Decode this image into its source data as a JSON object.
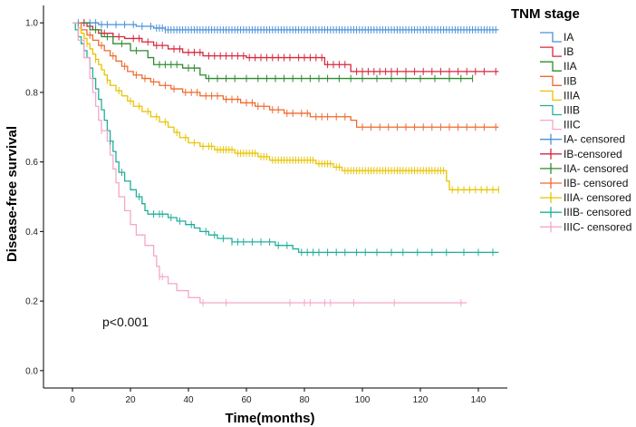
{
  "chart_data": {
    "type": "line",
    "subtype": "kaplan-meier",
    "title": "",
    "xlabel": "Time(months)",
    "ylabel": "Disease-free survival",
    "xlim": [
      -10,
      150
    ],
    "ylim": [
      -0.05,
      1.05
    ],
    "x_ticks": [
      0,
      20,
      40,
      60,
      80,
      100,
      120,
      140
    ],
    "y_ticks": [
      0.0,
      0.2,
      0.4,
      0.6,
      0.8,
      1.0
    ],
    "y_tick_labels": [
      "0.0",
      "0.2",
      "0.4",
      "0.6",
      "0.8",
      "1.0"
    ],
    "grid": false,
    "legend_title": "TNM stage",
    "legend_position": "right",
    "annotation": "p<0.001",
    "series": [
      {
        "name": "IA",
        "censored_label": "IA- censored",
        "color": "#4A90D9",
        "steps": [
          [
            0,
            1.0
          ],
          [
            9,
            0.995
          ],
          [
            22,
            0.99
          ],
          [
            28,
            0.985
          ],
          [
            32,
            0.98
          ],
          [
            147,
            0.98
          ]
        ],
        "censor_times": [
          2,
          4,
          6,
          8,
          10,
          12,
          15,
          18,
          21,
          24,
          27,
          29,
          30,
          31,
          32,
          33,
          34,
          35,
          36,
          37,
          38,
          39,
          40,
          41,
          42,
          43,
          44,
          45,
          46,
          47,
          48,
          49,
          50,
          51,
          52,
          53,
          54,
          55,
          56,
          57,
          58,
          59,
          60,
          61,
          62,
          63,
          64,
          65,
          66,
          67,
          68,
          69,
          70,
          71,
          72,
          73,
          74,
          75,
          76,
          77,
          78,
          79,
          80,
          81,
          82,
          83,
          84,
          85,
          86,
          87,
          88,
          89,
          90,
          91,
          92,
          93,
          94,
          95,
          96,
          97,
          98,
          99,
          100,
          101,
          102,
          103,
          104,
          105,
          106,
          107,
          108,
          109,
          110,
          111,
          112,
          113,
          114,
          115,
          116,
          117,
          118,
          119,
          120,
          121,
          122,
          123,
          124,
          125,
          126,
          127,
          128,
          129,
          130,
          131,
          132,
          133,
          134,
          135,
          136,
          137,
          138,
          139,
          140,
          141,
          142,
          143,
          144,
          145,
          146
        ]
      },
      {
        "name": "IB",
        "censored_label": "IB-censored",
        "color": "#D7263D",
        "steps": [
          [
            0,
            1.0
          ],
          [
            5,
            0.99
          ],
          [
            7,
            0.98
          ],
          [
            9,
            0.97
          ],
          [
            14,
            0.96
          ],
          [
            18,
            0.955
          ],
          [
            24,
            0.945
          ],
          [
            28,
            0.935
          ],
          [
            33,
            0.925
          ],
          [
            38,
            0.915
          ],
          [
            45,
            0.905
          ],
          [
            60,
            0.9
          ],
          [
            87,
            0.88
          ],
          [
            96,
            0.86
          ],
          [
            147,
            0.86
          ]
        ],
        "censor_times": [
          4,
          11,
          16,
          21,
          23,
          26,
          29,
          31,
          35,
          37,
          40,
          42,
          44,
          47,
          49,
          51,
          53,
          55,
          57,
          59,
          61,
          63,
          65,
          67,
          69,
          71,
          73,
          75,
          78,
          80,
          82,
          84,
          86,
          88,
          90,
          92,
          94,
          98,
          100,
          102,
          104,
          106,
          108,
          110,
          112,
          115,
          118,
          121,
          124,
          127,
          130,
          133,
          136,
          139,
          142,
          146
        ]
      },
      {
        "name": "IIA",
        "censored_label": "IIA- censored",
        "color": "#2E8B2E",
        "steps": [
          [
            0,
            1.0
          ],
          [
            6,
            0.98
          ],
          [
            10,
            0.96
          ],
          [
            14,
            0.94
          ],
          [
            20,
            0.92
          ],
          [
            26,
            0.9
          ],
          [
            28,
            0.88
          ],
          [
            38,
            0.87
          ],
          [
            44,
            0.85
          ],
          [
            46,
            0.84
          ],
          [
            138,
            0.84
          ]
        ],
        "censor_times": [
          8,
          12,
          17,
          22,
          30,
          32,
          34,
          36,
          40,
          42,
          47,
          50,
          53,
          56,
          60,
          64,
          67,
          70,
          73,
          76,
          79,
          82,
          85,
          88,
          92,
          96,
          100,
          105,
          110,
          115,
          120,
          125,
          130,
          134,
          138
        ]
      },
      {
        "name": "IIB",
        "censored_label": "IIB- censored",
        "color": "#EE6A2F",
        "steps": [
          [
            0,
            1.0
          ],
          [
            3,
            0.98
          ],
          [
            5,
            0.965
          ],
          [
            7,
            0.95
          ],
          [
            9,
            0.935
          ],
          [
            11,
            0.92
          ],
          [
            13,
            0.905
          ],
          [
            15,
            0.89
          ],
          [
            17,
            0.875
          ],
          [
            19,
            0.86
          ],
          [
            21,
            0.85
          ],
          [
            24,
            0.84
          ],
          [
            27,
            0.83
          ],
          [
            30,
            0.82
          ],
          [
            34,
            0.81
          ],
          [
            38,
            0.8
          ],
          [
            44,
            0.79
          ],
          [
            52,
            0.78
          ],
          [
            58,
            0.77
          ],
          [
            63,
            0.76
          ],
          [
            68,
            0.75
          ],
          [
            73,
            0.74
          ],
          [
            82,
            0.73
          ],
          [
            96,
            0.72
          ],
          [
            98,
            0.7
          ],
          [
            147,
            0.7
          ]
        ],
        "censor_times": [
          6,
          10,
          14,
          18,
          22,
          25,
          28,
          32,
          35,
          39,
          41,
          43,
          46,
          48,
          50,
          53,
          55,
          57,
          60,
          62,
          64,
          66,
          69,
          71,
          74,
          76,
          79,
          81,
          84,
          86,
          88,
          91,
          94,
          100,
          103,
          106,
          109,
          112,
          115,
          118,
          121,
          124,
          127,
          130,
          133,
          136,
          139,
          142,
          146
        ]
      },
      {
        "name": "IIIA",
        "censored_label": "IIIA- censored",
        "color": "#E8C400",
        "steps": [
          [
            0,
            1.0
          ],
          [
            2,
            0.985
          ],
          [
            3,
            0.97
          ],
          [
            4,
            0.955
          ],
          [
            5,
            0.94
          ],
          [
            6,
            0.925
          ],
          [
            7,
            0.91
          ],
          [
            8,
            0.895
          ],
          [
            9,
            0.88
          ],
          [
            10,
            0.865
          ],
          [
            11,
            0.85
          ],
          [
            12,
            0.835
          ],
          [
            13,
            0.82
          ],
          [
            15,
            0.805
          ],
          [
            17,
            0.79
          ],
          [
            19,
            0.775
          ],
          [
            21,
            0.76
          ],
          [
            24,
            0.745
          ],
          [
            27,
            0.73
          ],
          [
            30,
            0.715
          ],
          [
            33,
            0.7
          ],
          [
            35,
            0.685
          ],
          [
            37,
            0.67
          ],
          [
            40,
            0.655
          ],
          [
            44,
            0.645
          ],
          [
            49,
            0.635
          ],
          [
            56,
            0.625
          ],
          [
            64,
            0.615
          ],
          [
            68,
            0.605
          ],
          [
            84,
            0.595
          ],
          [
            90,
            0.585
          ],
          [
            93,
            0.575
          ],
          [
            129,
            0.545
          ],
          [
            130,
            0.52
          ],
          [
            147,
            0.52
          ]
        ],
        "censor_times": [
          5,
          8,
          12,
          16,
          20,
          23,
          26,
          29,
          32,
          36,
          39,
          42,
          45,
          47,
          48,
          50,
          51,
          52,
          53,
          54,
          55,
          57,
          58,
          59,
          60,
          61,
          62,
          63,
          65,
          66,
          67,
          69,
          70,
          71,
          72,
          73,
          74,
          75,
          76,
          77,
          78,
          79,
          80,
          81,
          82,
          83,
          85,
          86,
          87,
          88,
          89,
          91,
          92,
          94,
          95,
          96,
          97,
          98,
          99,
          100,
          101,
          102,
          103,
          104,
          105,
          106,
          107,
          108,
          109,
          110,
          111,
          112,
          113,
          114,
          115,
          116,
          117,
          118,
          119,
          120,
          121,
          122,
          123,
          124,
          125,
          126,
          127,
          128,
          131,
          133,
          135,
          137,
          139,
          141,
          143,
          145,
          147
        ]
      },
      {
        "name": "IIIB",
        "censored_label": "IIIB- censored",
        "color": "#1FAF9A",
        "steps": [
          [
            0,
            1.0
          ],
          [
            1,
            0.98
          ],
          [
            2,
            0.96
          ],
          [
            3,
            0.94
          ],
          [
            4,
            0.92
          ],
          [
            5,
            0.9
          ],
          [
            6,
            0.87
          ],
          [
            7,
            0.84
          ],
          [
            8,
            0.81
          ],
          [
            9,
            0.78
          ],
          [
            10,
            0.75
          ],
          [
            11,
            0.72
          ],
          [
            12,
            0.69
          ],
          [
            13,
            0.66
          ],
          [
            14,
            0.63
          ],
          [
            15,
            0.6
          ],
          [
            16,
            0.57
          ],
          [
            18,
            0.545
          ],
          [
            20,
            0.52
          ],
          [
            22,
            0.5
          ],
          [
            24,
            0.48
          ],
          [
            25,
            0.46
          ],
          [
            26,
            0.45
          ],
          [
            33,
            0.44
          ],
          [
            36,
            0.43
          ],
          [
            39,
            0.42
          ],
          [
            42,
            0.41
          ],
          [
            44,
            0.4
          ],
          [
            47,
            0.39
          ],
          [
            50,
            0.38
          ],
          [
            55,
            0.37
          ],
          [
            70,
            0.36
          ],
          [
            76,
            0.35
          ],
          [
            78,
            0.34
          ],
          [
            147,
            0.34
          ]
        ],
        "censor_times": [
          13,
          17,
          23,
          28,
          30,
          31,
          34,
          37,
          41,
          46,
          49,
          52,
          55,
          57,
          59,
          62,
          65,
          68,
          71,
          74,
          79,
          81,
          83,
          85,
          88,
          91,
          94,
          98,
          101,
          105,
          110,
          114,
          119,
          124,
          129,
          135,
          140,
          145
        ]
      },
      {
        "name": "IIIC",
        "censored_label": "IIIC- censored",
        "color": "#F4A7C9",
        "steps": [
          [
            0,
            1.0
          ],
          [
            2,
            0.95
          ],
          [
            4,
            0.9
          ],
          [
            6,
            0.84
          ],
          [
            7,
            0.8
          ],
          [
            8,
            0.76
          ],
          [
            9,
            0.72
          ],
          [
            10,
            0.69
          ],
          [
            12,
            0.66
          ],
          [
            13,
            0.62
          ],
          [
            14,
            0.58
          ],
          [
            15,
            0.54
          ],
          [
            16,
            0.5
          ],
          [
            18,
            0.46
          ],
          [
            20,
            0.42
          ],
          [
            22,
            0.39
          ],
          [
            25,
            0.36
          ],
          [
            28,
            0.33
          ],
          [
            29,
            0.3
          ],
          [
            30,
            0.27
          ],
          [
            33,
            0.25
          ],
          [
            36,
            0.23
          ],
          [
            40,
            0.21
          ],
          [
            44,
            0.195
          ],
          [
            136,
            0.195
          ]
        ],
        "censor_times": [
          10,
          30,
          31,
          45,
          53,
          75,
          80,
          82,
          87,
          89,
          97,
          111,
          134
        ]
      }
    ]
  }
}
